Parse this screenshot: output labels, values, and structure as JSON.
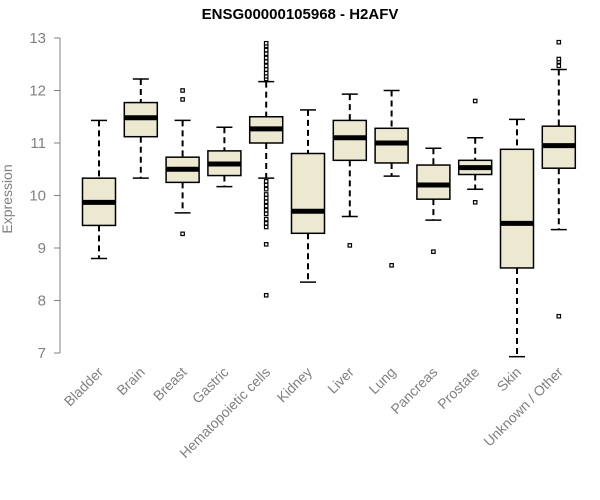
{
  "chart_data": {
    "type": "box",
    "title": "ENSG00000105968 - H2AFV",
    "ylabel": "Expression",
    "xlabel": "",
    "ylim": [
      7,
      13
    ],
    "yticks": [
      7,
      8,
      9,
      10,
      11,
      12,
      13
    ],
    "grid": false,
    "legend": "none",
    "colors": {
      "box_fill": "#ede8d0",
      "stroke": "#000000",
      "axis": "#808080"
    },
    "categories": [
      "Bladder",
      "Brain",
      "Breast",
      "Gastric",
      "Hematopoietic cells",
      "Kidney",
      "Liver",
      "Lung",
      "Pancreas",
      "Prostate",
      "Skin",
      "Unknown / Other"
    ],
    "boxes": [
      {
        "category": "Bladder",
        "whisker_low": 8.8,
        "q1": 9.43,
        "median": 9.87,
        "q3": 10.33,
        "whisker_high": 11.43,
        "outliers": []
      },
      {
        "category": "Brain",
        "whisker_low": 10.33,
        "q1": 11.12,
        "median": 11.48,
        "q3": 11.77,
        "whisker_high": 12.22,
        "outliers": []
      },
      {
        "category": "Breast",
        "whisker_low": 9.67,
        "q1": 10.25,
        "median": 10.5,
        "q3": 10.73,
        "whisker_high": 11.43,
        "outliers": [
          9.27,
          11.83,
          12.0
        ]
      },
      {
        "category": "Gastric",
        "whisker_low": 10.17,
        "q1": 10.38,
        "median": 10.6,
        "q3": 10.85,
        "whisker_high": 11.3,
        "outliers": []
      },
      {
        "category": "Hematopoietic cells",
        "whisker_low": 10.33,
        "q1": 11.0,
        "median": 11.27,
        "q3": 11.5,
        "whisker_high": 12.17,
        "outliers": [
          8.1,
          9.07,
          9.4,
          9.47,
          9.55,
          9.65,
          9.72,
          9.8,
          9.88,
          9.95,
          10.02,
          10.12,
          10.2,
          10.27,
          12.22,
          12.27,
          12.33,
          12.4,
          12.47,
          12.55,
          12.62,
          12.7,
          12.77,
          12.85,
          12.9
        ]
      },
      {
        "category": "Kidney",
        "whisker_low": 8.35,
        "q1": 9.28,
        "median": 9.7,
        "q3": 10.8,
        "whisker_high": 11.63,
        "outliers": []
      },
      {
        "category": "Liver",
        "whisker_low": 9.6,
        "q1": 10.67,
        "median": 11.1,
        "q3": 11.43,
        "whisker_high": 11.93,
        "outliers": [
          9.05
        ]
      },
      {
        "category": "Lung",
        "whisker_low": 10.37,
        "q1": 10.62,
        "median": 11.0,
        "q3": 11.28,
        "whisker_high": 12.0,
        "outliers": [
          8.67
        ]
      },
      {
        "category": "Pancreas",
        "whisker_low": 9.53,
        "q1": 9.93,
        "median": 10.2,
        "q3": 10.58,
        "whisker_high": 10.9,
        "outliers": [
          8.93
        ]
      },
      {
        "category": "Prostate",
        "whisker_low": 10.12,
        "q1": 10.4,
        "median": 10.53,
        "q3": 10.67,
        "whisker_high": 11.1,
        "outliers": [
          9.87,
          11.8
        ]
      },
      {
        "category": "Skin",
        "whisker_low": 6.93,
        "q1": 8.62,
        "median": 9.47,
        "q3": 10.88,
        "whisker_high": 11.45,
        "outliers": []
      },
      {
        "category": "Unknown / Other",
        "whisker_low": 9.35,
        "q1": 10.52,
        "median": 10.95,
        "q3": 11.32,
        "whisker_high": 12.4,
        "outliers": [
          7.7,
          12.47,
          12.55,
          12.6,
          12.92
        ]
      }
    ]
  }
}
